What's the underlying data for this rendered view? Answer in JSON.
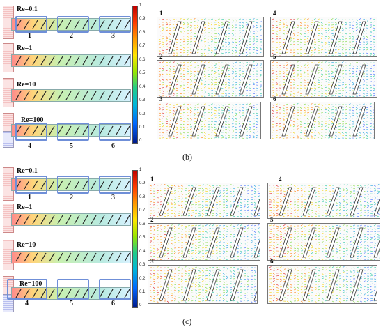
{
  "panel_b": {
    "label": "(b)",
    "re_labels": [
      "Re=0.1",
      "Re=1",
      "Re=10",
      "Re=100"
    ],
    "zone_numbers_top": [
      "1",
      "2",
      "3"
    ],
    "zone_numbers_bottom": [
      "4",
      "5",
      "6"
    ],
    "colorbar_ticks": [
      "1",
      "0.9",
      "0.8",
      "0.7",
      "0.6",
      "0.5",
      "0.4",
      "0.3",
      "0.2",
      "0.1",
      "0"
    ],
    "flow_numbers": [
      "1",
      "2",
      "3",
      "4",
      "5",
      "6"
    ]
  },
  "panel_c": {
    "label": "(c)",
    "re_labels": [
      "Re=0.1",
      "Re=1",
      "Re=10",
      "Re=100"
    ],
    "zone_numbers_top": [
      "1",
      "2",
      "3"
    ],
    "zone_numbers_bottom": [
      "4",
      "5",
      "6"
    ],
    "colorbar_ticks": [
      "1",
      "0.9",
      "0.8",
      "0.7",
      "0.6",
      "0.5",
      "0.4",
      "0.3",
      "0.2",
      "0.1",
      "0"
    ],
    "flow_numbers": [
      "1",
      "2",
      "3",
      "4",
      "5",
      "6"
    ]
  },
  "colors": {
    "zone_box": "#6f8fd8",
    "colormap": [
      "#c00000",
      "#ff9900",
      "#ffe600",
      "#22cc88",
      "#0066ff",
      "#001a8c"
    ]
  }
}
